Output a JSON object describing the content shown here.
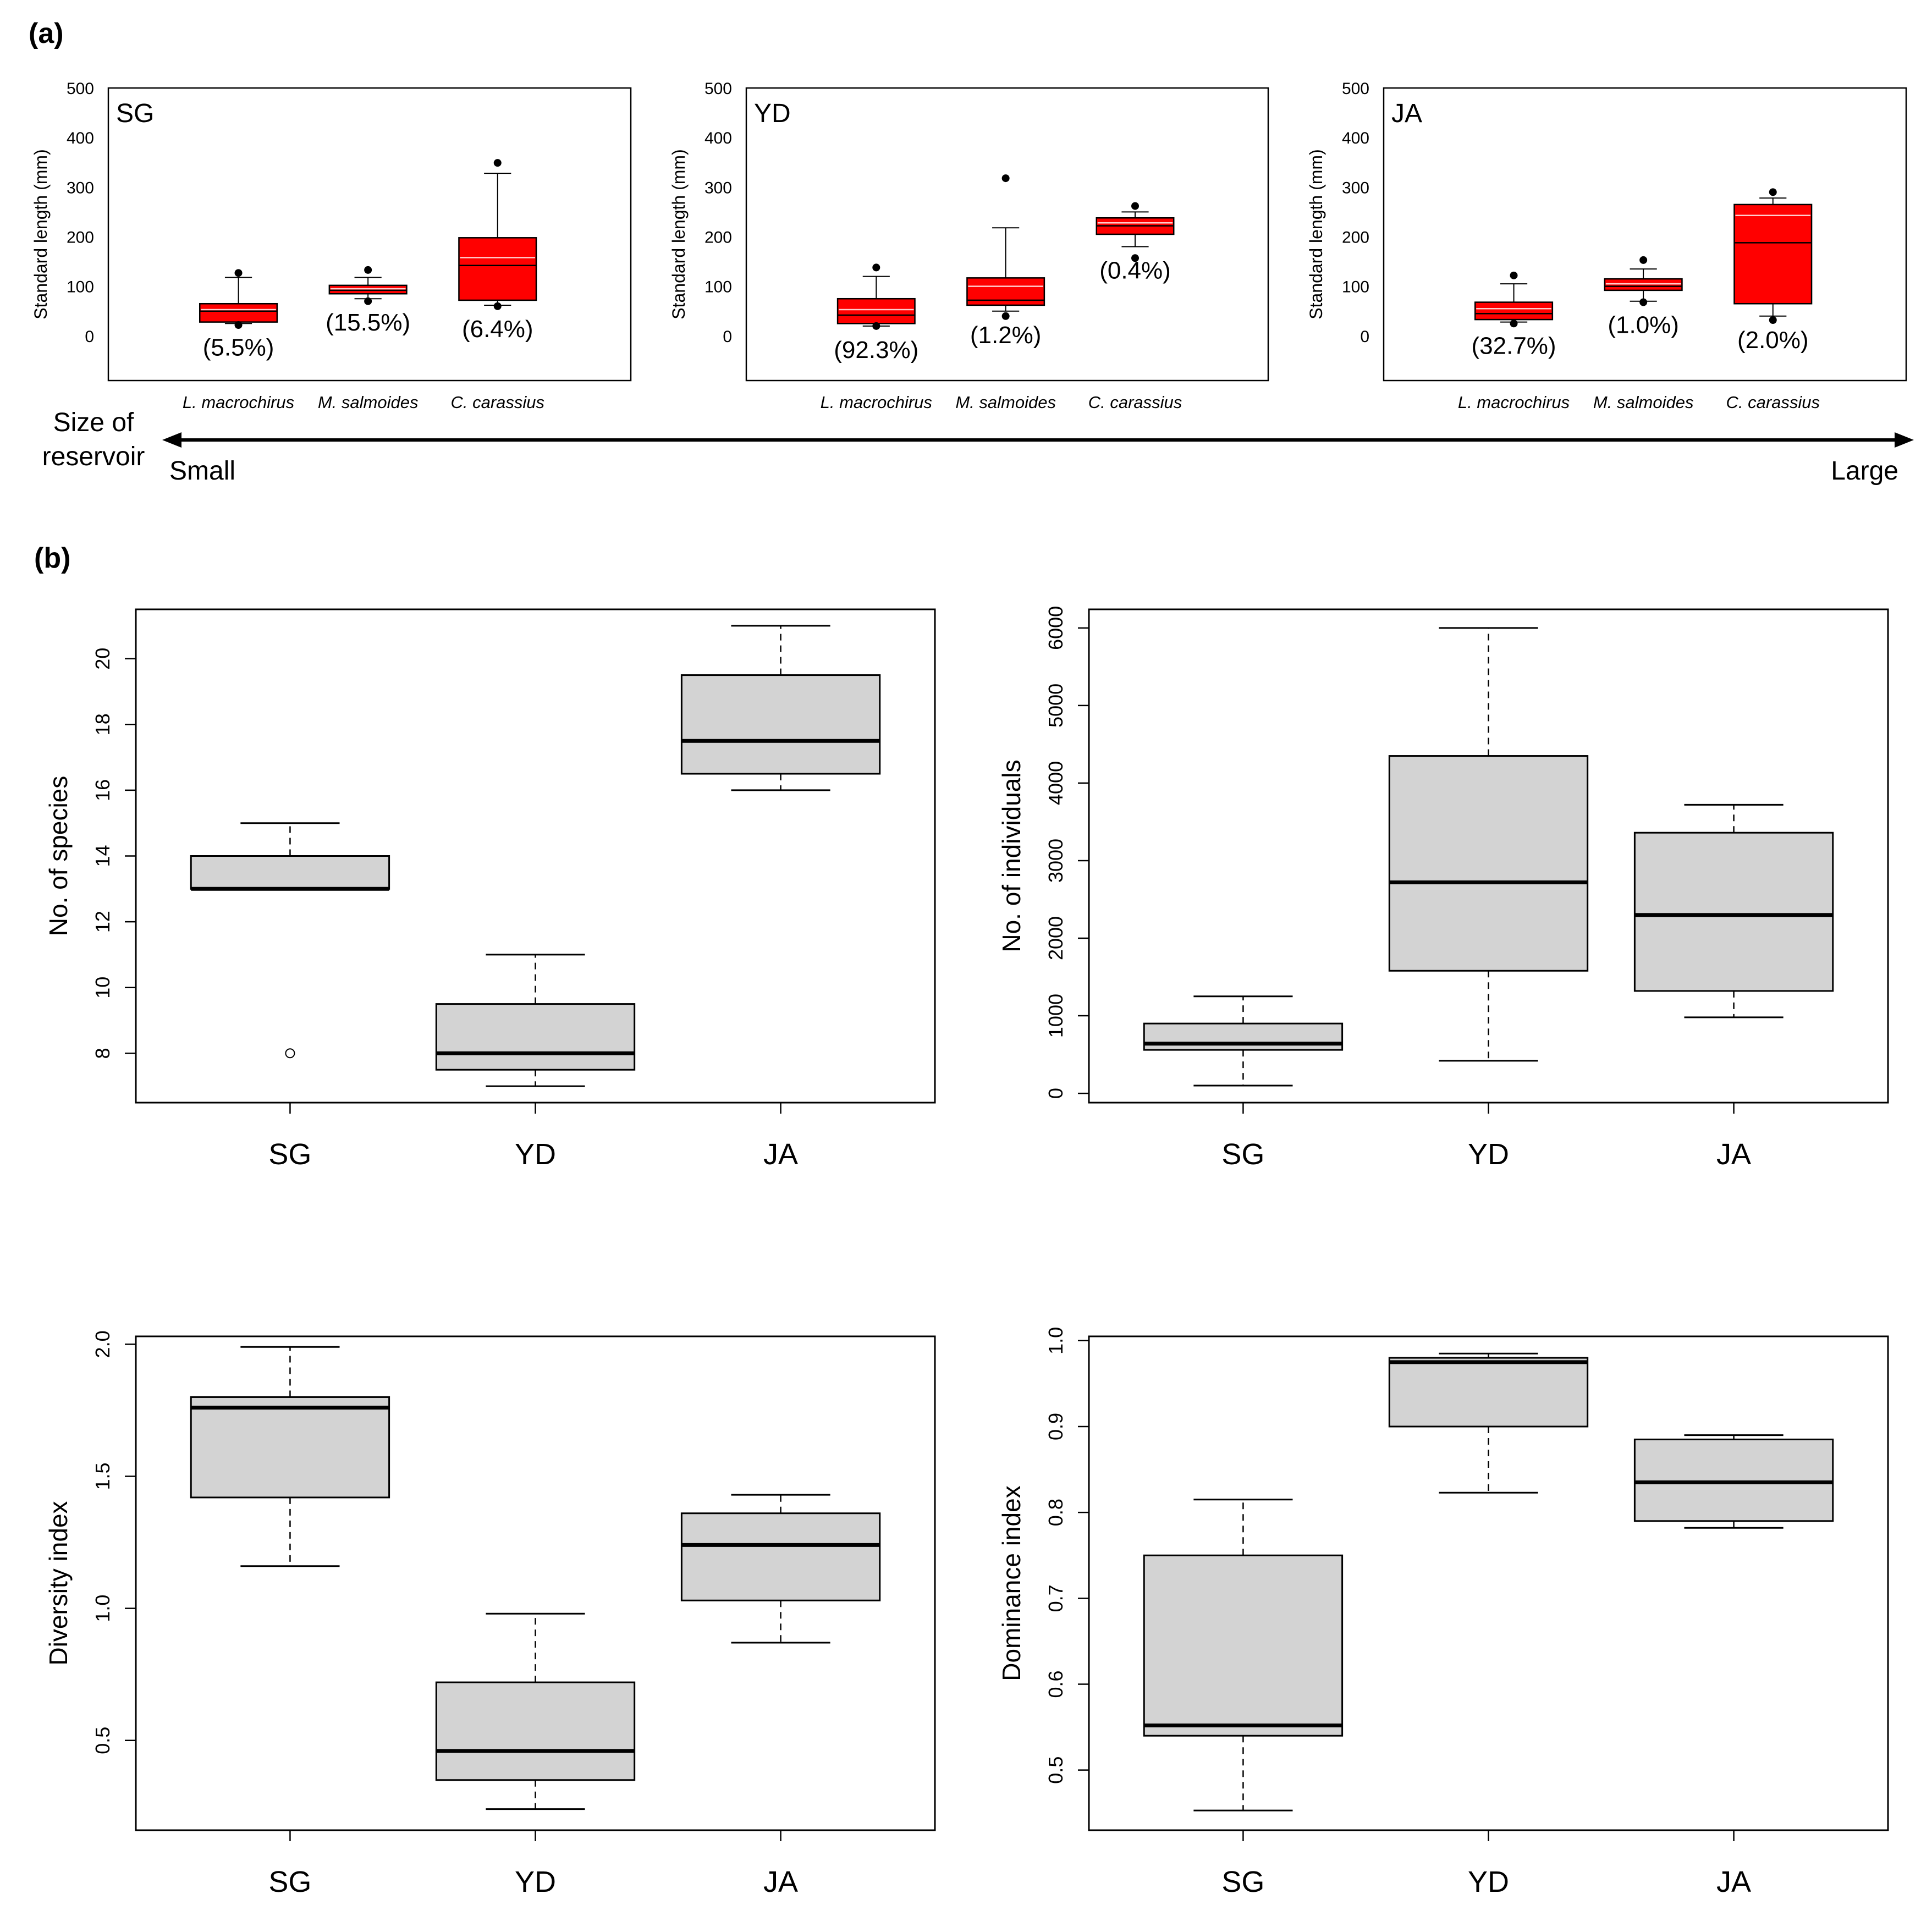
{
  "panel_labels": {
    "a": "(a)",
    "b": "(b)"
  },
  "size_axis": {
    "label_line1": "Size of",
    "label_line2": "reservoir",
    "small": "Small",
    "large": "Large"
  },
  "colors": {
    "box_a_fill": "#ff0000",
    "box_b_fill": "#d3d3d3",
    "median_a": "#000000",
    "mean_a": "#ffcccc"
  },
  "chart_data": [
    {
      "id": "a-SG",
      "type": "box",
      "panel": "a",
      "site_label": "SG",
      "ylabel": "Standard length (mm)",
      "ylim": [
        -90,
        500
      ],
      "yticks": [
        0,
        100,
        200,
        300,
        400,
        500
      ],
      "categories": [
        "L. macrochirus",
        "M. salmoides",
        "C. carassius"
      ],
      "boxes": [
        {
          "q1": 28,
          "median": 50,
          "mean": 53,
          "q3": 65,
          "whisker_low": 25,
          "whisker_high": 118,
          "outliers": [
            127,
            22
          ],
          "percent": "(5.5%)"
        },
        {
          "q1": 85,
          "median": 92,
          "mean": 95,
          "q3": 102,
          "whisker_low": 75,
          "whisker_high": 118,
          "outliers": [
            133,
            70
          ],
          "percent": "(15.5%)"
        },
        {
          "q1": 72,
          "median": 142,
          "mean": 158,
          "q3": 198,
          "whisker_low": 62,
          "whisker_high": 328,
          "outliers": [
            349,
            60
          ],
          "percent": "(6.4%)"
        }
      ]
    },
    {
      "id": "a-YD",
      "type": "box",
      "panel": "a",
      "site_label": "YD",
      "ylabel": "Standard length (mm)",
      "ylim": [
        -90,
        500
      ],
      "yticks": [
        0,
        100,
        200,
        300,
        400,
        500
      ],
      "categories": [
        "L. macrochirus",
        "M. salmoides",
        "C. carassius"
      ],
      "boxes": [
        {
          "q1": 25,
          "median": 42,
          "mean": 53,
          "q3": 75,
          "whisker_low": 20,
          "whisker_high": 120,
          "outliers": [
            138,
            20
          ],
          "percent": "(92.3%)"
        },
        {
          "q1": 62,
          "median": 72,
          "mean": 100,
          "q3": 117,
          "whisker_low": 50,
          "whisker_high": 218,
          "outliers": [
            318,
            40
          ],
          "percent": "(1.2%)"
        },
        {
          "q1": 205,
          "median": 222,
          "mean": 228,
          "q3": 238,
          "whisker_low": 180,
          "whisker_high": 250,
          "outliers": [
            262,
            157
          ],
          "percent": "(0.4%)"
        }
      ]
    },
    {
      "id": "a-JA",
      "type": "box",
      "panel": "a",
      "site_label": "JA",
      "ylabel": "Standard length (mm)",
      "ylim": [
        -90,
        500
      ],
      "yticks": [
        0,
        100,
        200,
        300,
        400,
        500
      ],
      "categories": [
        "L. macrochirus",
        "M. salmoides",
        "C. carassius"
      ],
      "boxes": [
        {
          "q1": 33,
          "median": 45,
          "mean": 55,
          "q3": 68,
          "whisker_low": 28,
          "whisker_high": 105,
          "outliers": [
            122,
            25
          ],
          "percent": "(32.7%)"
        },
        {
          "q1": 92,
          "median": 100,
          "mean": 105,
          "q3": 115,
          "whisker_low": 70,
          "whisker_high": 135,
          "outliers": [
            153,
            68
          ],
          "percent": "(1.0%)"
        },
        {
          "q1": 65,
          "median": 188,
          "mean": 243,
          "q3": 265,
          "whisker_low": 40,
          "whisker_high": 278,
          "outliers": [
            290,
            32
          ],
          "percent": "(2.0%)"
        }
      ]
    },
    {
      "id": "b-species",
      "type": "box",
      "panel": "b",
      "ylabel": "No. of species",
      "ylim": [
        6.5,
        21.5
      ],
      "yticks": [
        8,
        10,
        12,
        14,
        16,
        18,
        20
      ],
      "categories": [
        "SG",
        "YD",
        "JA"
      ],
      "boxes": [
        {
          "q1": 13,
          "median": 13,
          "q3": 14,
          "whisker_low": 13,
          "whisker_high": 15,
          "outliers": [
            8
          ]
        },
        {
          "q1": 7.5,
          "median": 8,
          "q3": 9.5,
          "whisker_low": 7,
          "whisker_high": 11,
          "outliers": []
        },
        {
          "q1": 16.5,
          "median": 17.5,
          "q3": 19.5,
          "whisker_low": 16,
          "whisker_high": 21,
          "outliers": []
        }
      ]
    },
    {
      "id": "b-individuals",
      "type": "box",
      "panel": "b",
      "ylabel": "No. of individuals",
      "ylim": [
        -120,
        6240
      ],
      "yticks": [
        0,
        1000,
        2000,
        3000,
        4000,
        5000,
        6000
      ],
      "categories": [
        "SG",
        "YD",
        "JA"
      ],
      "boxes": [
        {
          "q1": 560,
          "median": 640,
          "q3": 900,
          "whisker_low": 100,
          "whisker_high": 1250,
          "outliers": []
        },
        {
          "q1": 1580,
          "median": 2720,
          "q3": 4350,
          "whisker_low": 420,
          "whisker_high": 6000,
          "outliers": []
        },
        {
          "q1": 1320,
          "median": 2300,
          "q3": 3360,
          "whisker_low": 980,
          "whisker_high": 3720,
          "outliers": []
        }
      ]
    },
    {
      "id": "b-diversity",
      "type": "box",
      "panel": "b",
      "ylabel": "Diversity index",
      "ylim": [
        0.16,
        2.03
      ],
      "yticks": [
        0.5,
        1.0,
        1.5,
        2.0
      ],
      "ytick_labels": [
        "0.5",
        "1.0",
        "1.5",
        "2.0"
      ],
      "categories": [
        "SG",
        "YD",
        "JA"
      ],
      "boxes": [
        {
          "q1": 1.42,
          "median": 1.76,
          "q3": 1.8,
          "whisker_low": 1.16,
          "whisker_high": 1.99,
          "outliers": []
        },
        {
          "q1": 0.35,
          "median": 0.46,
          "q3": 0.72,
          "whisker_low": 0.24,
          "whisker_high": 0.98,
          "outliers": []
        },
        {
          "q1": 1.03,
          "median": 1.24,
          "q3": 1.36,
          "whisker_low": 0.87,
          "whisker_high": 1.43,
          "outliers": []
        }
      ]
    },
    {
      "id": "b-dominance",
      "type": "box",
      "panel": "b",
      "ylabel": "Dominance index",
      "ylim": [
        0.43,
        1.005
      ],
      "yticks": [
        0.5,
        0.6,
        0.7,
        0.8,
        0.9,
        1.0
      ],
      "ytick_labels": [
        "0.5",
        "0.6",
        "0.7",
        "0.8",
        "0.9",
        "1.0"
      ],
      "categories": [
        "SG",
        "YD",
        "JA"
      ],
      "boxes": [
        {
          "q1": 0.54,
          "median": 0.552,
          "q3": 0.75,
          "whisker_low": 0.453,
          "whisker_high": 0.815,
          "outliers": []
        },
        {
          "q1": 0.9,
          "median": 0.975,
          "q3": 0.98,
          "whisker_low": 0.823,
          "whisker_high": 0.985,
          "outliers": []
        },
        {
          "q1": 0.79,
          "median": 0.835,
          "q3": 0.885,
          "whisker_low": 0.782,
          "whisker_high": 0.89,
          "outliers": []
        }
      ]
    }
  ]
}
